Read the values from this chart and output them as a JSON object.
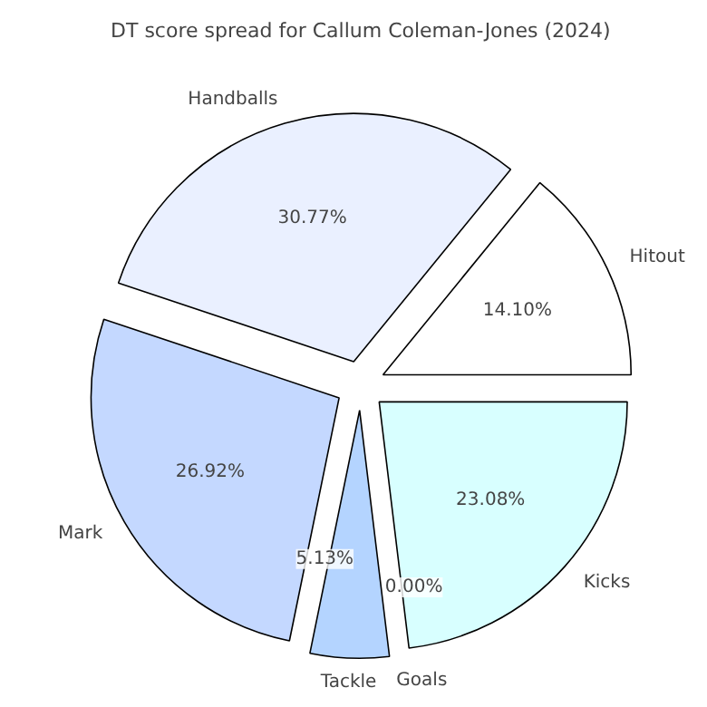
{
  "chart_data": {
    "type": "pie",
    "title": "DT score spread for Callum Coleman-Jones (2024)",
    "categories": [
      "Hitout",
      "Handballs",
      "Mark",
      "Tackle",
      "Goals",
      "Kicks"
    ],
    "values": [
      14.1,
      30.77,
      26.92,
      5.13,
      0.0,
      23.08
    ],
    "colors": [
      "#ffffff",
      "#eaf0ff",
      "#c4d8ff",
      "#b4d4ff",
      "#a8c8ff",
      "#d8ffff"
    ],
    "value_labels": [
      "14.10%",
      "30.77%",
      "26.92%",
      "5.13%",
      "0.00%",
      "23.08%"
    ]
  }
}
